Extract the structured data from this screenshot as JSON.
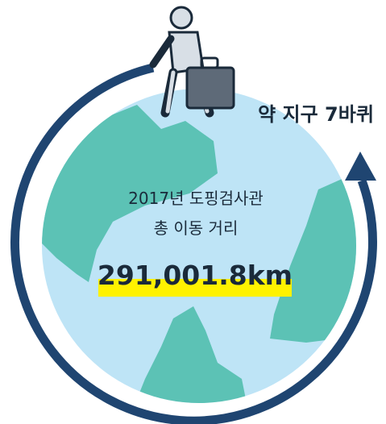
{
  "annotation": "약 지구 7바퀴",
  "caption": {
    "line1": "2017년 도핑검사관",
    "line2": "총 이동 거리"
  },
  "distance": "291,001.8km"
}
